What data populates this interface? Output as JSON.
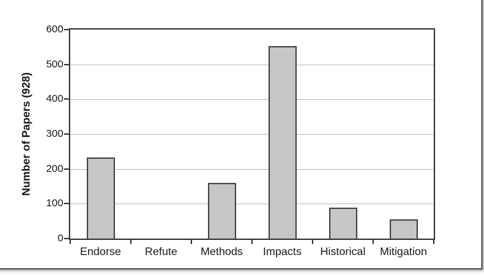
{
  "chart_data": {
    "type": "bar",
    "title": "",
    "ylabel": "Number of Papers (928)",
    "xlabel": "",
    "categories": [
      "Endorse",
      "Refute",
      "Methods",
      "Impacts",
      "Historical",
      "Mitigation"
    ],
    "values": [
      232,
      0,
      160,
      553,
      88,
      56
    ],
    "ylim": [
      0,
      600
    ],
    "yticks": [
      0,
      100,
      200,
      300,
      400,
      500,
      600
    ],
    "grid": "horizontal gridlines every 100, light gray",
    "legend_position": "none",
    "bar_style": "light gray fill with dark gray outline",
    "colors": {
      "bar_fill": "#c6c6c6",
      "bar_border": "#4a4a4a",
      "plot_border": "#3b3b3b",
      "gridline": "#bdbdbd",
      "text": "#161616",
      "frame": "#58595b"
    }
  }
}
